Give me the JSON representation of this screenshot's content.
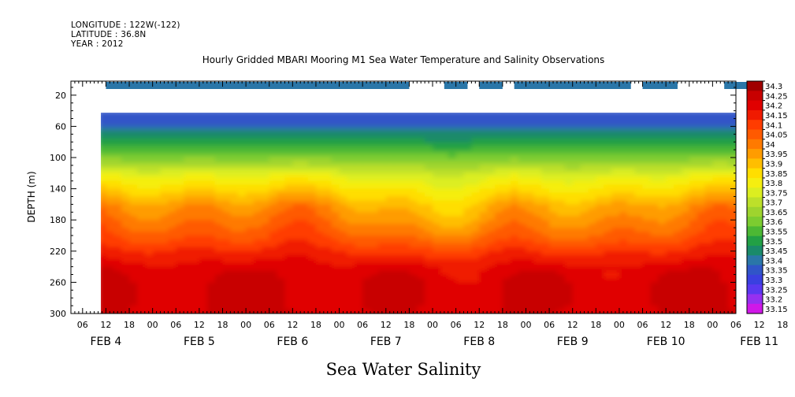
{
  "header": {
    "longitude": "LONGITUDE : 122W(-122)",
    "latitude": "LATITUDE : 36.8N",
    "year": "YEAR : 2012"
  },
  "chart_data": {
    "type": "heatmap",
    "title": "Hourly Gridded MBARI Mooring M1 Sea Water Temperature and Salinity Observations",
    "bottom_title": "Sea Water Salinity",
    "ylabel": "DEPTH (m)",
    "x_ticks": [
      "06",
      "12",
      "18",
      "00",
      "06",
      "12",
      "18",
      "00",
      "06",
      "12",
      "18",
      "00",
      "06",
      "12",
      "18",
      "00",
      "06",
      "12",
      "18",
      "00",
      "06",
      "12",
      "18",
      "00",
      "06",
      "12",
      "18",
      "00",
      "06",
      "12",
      "18",
      "00"
    ],
    "x_day_labels": [
      "FEB  4",
      "FEB  5",
      "FEB  6",
      "FEB  7",
      "FEB  8",
      "FEB  9",
      "FEB 10",
      "FEB 11"
    ],
    "y_ticks": [
      20,
      60,
      100,
      140,
      180,
      220,
      260,
      300
    ],
    "ylim": [
      300,
      2
    ],
    "y_inverted": true,
    "x_range_hours": [
      "FEB 4 03:00",
      "FEB 11 06:00"
    ],
    "data_start": "FEB 4 12:00",
    "near_surface_bar": {
      "depth_m": 10,
      "value": 33.35,
      "segments": [
        [
          "FEB 4 12:00",
          "FEB 7 18:00"
        ],
        [
          "FEB 8 03:00",
          "FEB 8 09:00"
        ],
        [
          "FEB 8 12:00",
          "FEB 8 18:00"
        ],
        [
          "FEB 8 21:00",
          "FEB 10 03:00"
        ],
        [
          "FEB 10 06:00",
          "FEB 10 15:00"
        ],
        [
          "FEB 11 03:00",
          "FEB 11 09:00"
        ]
      ]
    },
    "depth_profile_m": [
      40,
      60,
      80,
      100,
      120,
      140,
      160,
      180,
      200,
      220,
      240,
      260,
      280,
      300
    ],
    "salinity_profile_typical": [
      33.3,
      33.38,
      33.48,
      33.6,
      33.75,
      33.85,
      33.95,
      34.0,
      34.05,
      34.12,
      34.18,
      34.2,
      34.2,
      34.2
    ],
    "colorbar": {
      "levels": [
        "34.3",
        "34.25",
        "34.2",
        "34.15",
        "34.1",
        "34.05",
        "34",
        "33.95",
        "33.9",
        "33.85",
        "33.8",
        "33.75",
        "33.7",
        "33.65",
        "33.6",
        "33.55",
        "33.5",
        "33.45",
        "33.4",
        "33.35",
        "33.3",
        "33.25",
        "33.2",
        "33.15"
      ],
      "colors": [
        "#a00000",
        "#c80000",
        "#e00000",
        "#f01a00",
        "#ff3c00",
        "#ff5a00",
        "#ff7a00",
        "#ff9c00",
        "#ffbe00",
        "#ffde00",
        "#f5ee10",
        "#dcee20",
        "#bde02a",
        "#9ed42e",
        "#7ccc30",
        "#4cb834",
        "#22a045",
        "#1a8a6a",
        "#2a76a8",
        "#3055c8",
        "#3a40e0",
        "#5a38f0",
        "#9630f0",
        "#d018e8"
      ]
    }
  }
}
